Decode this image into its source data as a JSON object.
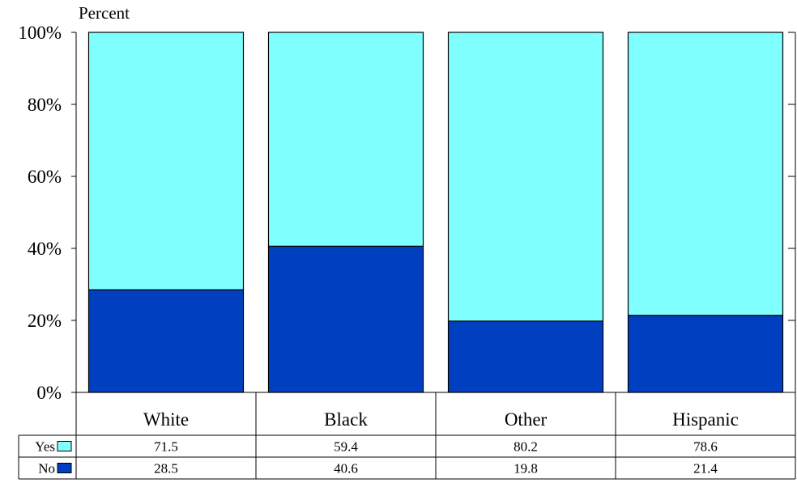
{
  "chart_data": {
    "type": "bar",
    "stacked": true,
    "ylabel": "Percent",
    "ylim": [
      0,
      100
    ],
    "yticks": [
      "0%",
      "20%",
      "40%",
      "60%",
      "80%",
      "100%"
    ],
    "grid": false,
    "categories": [
      "White",
      "Black",
      "Other",
      "Hispanic"
    ],
    "series": [
      {
        "name": "No",
        "values": [
          28.5,
          40.6,
          19.8,
          21.4
        ],
        "color": "#0040c0"
      },
      {
        "name": "Yes",
        "values": [
          71.5,
          59.4,
          80.2,
          78.6
        ],
        "color": "#80ffff"
      }
    ],
    "table": {
      "rows": [
        {
          "label": "Yes",
          "values": [
            "71.5",
            "59.4",
            "80.2",
            "78.6"
          ],
          "color": "#80ffff"
        },
        {
          "label": "No",
          "values": [
            "28.5",
            "40.6",
            "19.8",
            "21.4"
          ],
          "color": "#0040c0"
        }
      ]
    }
  }
}
